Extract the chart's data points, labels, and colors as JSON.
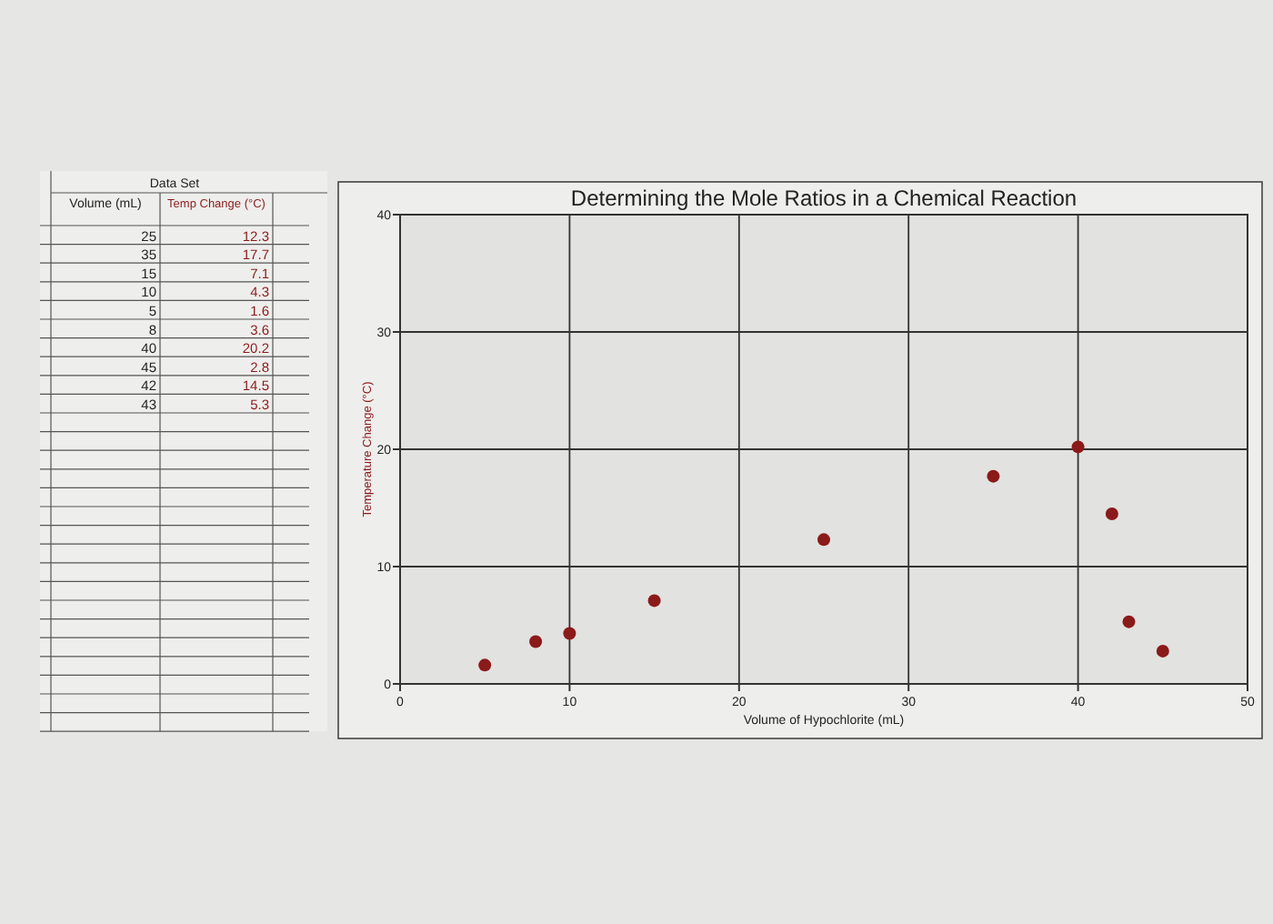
{
  "chart_data": [
    {
      "type": "other",
      "title": "Data Set",
      "xlabel": "Volume (mL)",
      "ylabel": "Temp Change (°C)",
      "categories": [
        "25",
        "35",
        "15",
        "10",
        "5",
        "8",
        "40",
        "45",
        "42",
        "43"
      ],
      "values": [
        12.3,
        17.7,
        7.1,
        4.3,
        1.6,
        3.6,
        20.2,
        2.8,
        14.5,
        5.3
      ],
      "data_labels": true
    },
    {
      "type": "scatter",
      "title": "Determining the Mole Ratios in a Chemical Reaction",
      "xlabel": "Volume of Hypochlorite (mL)",
      "ylabel": "Temperature Change (°C)",
      "x": [
        25,
        35,
        15,
        10,
        5,
        8,
        40,
        45,
        42,
        43
      ],
      "series": [
        {
          "color": "#8b1a1a",
          "values": [
            12.3,
            17.7,
            7.1,
            4.3,
            1.6,
            3.6,
            20.2,
            2.8,
            14.5,
            5.3
          ]
        }
      ],
      "xlim": [
        0,
        50
      ],
      "xticks": [
        0,
        10,
        20,
        30,
        40,
        50
      ],
      "ylim": [
        0,
        40
      ],
      "yticks": [
        0,
        10,
        20,
        30,
        40
      ],
      "grid": true,
      "marker": "circle"
    }
  ]
}
